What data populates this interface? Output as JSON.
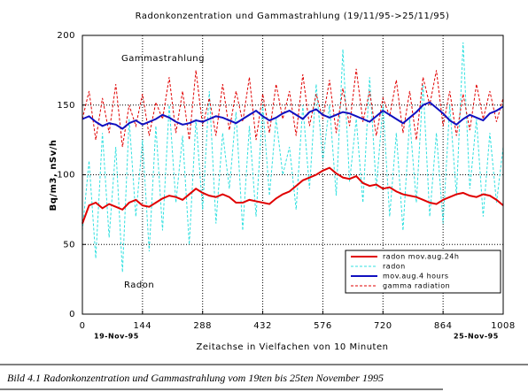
{
  "chart_data": {
    "type": "line",
    "title": "Radonkonzentration und Gammastrahlung (19/11/95->25/11/95)",
    "x_label": "Zeitachse in Vielfachen von 10 Minuten",
    "y_label": "Bq/m3, nSv/h",
    "annotations": [
      "Gammastrahlung",
      "Radon"
    ],
    "date_start": "19-Nov-95",
    "date_end": "25-Nov-95",
    "caption": "Bild 4.1 Radonkonzentration und Gammastrahlung vom 19ten bis 25ten November 1995",
    "xlim": [
      0,
      1008
    ],
    "ylim": [
      0,
      200
    ],
    "xticks": [
      0,
      144,
      288,
      432,
      576,
      720,
      864,
      1008
    ],
    "yticks": [
      0,
      50,
      100,
      150,
      200
    ],
    "grid": true,
    "legend": "lower-right",
    "x": [
      0,
      16,
      32,
      48,
      64,
      80,
      96,
      112,
      128,
      144,
      160,
      176,
      192,
      208,
      224,
      240,
      256,
      272,
      288,
      304,
      320,
      336,
      352,
      368,
      384,
      400,
      416,
      432,
      448,
      464,
      480,
      496,
      512,
      528,
      544,
      560,
      576,
      592,
      608,
      624,
      640,
      656,
      672,
      688,
      704,
      720,
      736,
      752,
      768,
      784,
      800,
      816,
      832,
      848,
      864,
      880,
      896,
      912,
      928,
      944,
      960,
      976,
      992,
      1008
    ],
    "series": [
      {
        "name": "radon mov.aug.24h",
        "color": "#e00000",
        "dashed": false,
        "values": [
          65,
          78,
          80,
          76,
          79,
          77,
          75,
          80,
          82,
          78,
          77,
          80,
          83,
          85,
          84,
          82,
          86,
          90,
          87,
          85,
          84,
          86,
          84,
          80,
          80,
          82,
          81,
          80,
          79,
          83,
          86,
          88,
          92,
          96,
          98,
          100,
          103,
          105,
          101,
          98,
          97,
          99,
          94,
          92,
          93,
          90,
          91,
          88,
          86,
          85,
          84,
          82,
          80,
          79,
          82,
          84,
          86,
          87,
          85,
          84,
          86,
          85,
          82,
          78
        ]
      },
      {
        "name": "radon",
        "color": "#30e0e0",
        "dashed": true,
        "values": [
          60,
          110,
          40,
          130,
          55,
          120,
          30,
          140,
          70,
          125,
          45,
          135,
          60,
          150,
          80,
          128,
          50,
          140,
          75,
          160,
          65,
          130,
          90,
          145,
          60,
          135,
          70,
          150,
          85,
          140,
          100,
          120,
          75,
          150,
          90,
          165,
          110,
          150,
          85,
          190,
          95,
          140,
          80,
          170,
          90,
          150,
          70,
          130,
          60,
          140,
          80,
          165,
          70,
          130,
          65,
          150,
          85,
          195,
          90,
          140,
          70,
          130,
          80,
          120
        ]
      },
      {
        "name": "mov.aug.4 hours",
        "color": "#1010c0",
        "dashed": false,
        "values": [
          140,
          142,
          138,
          135,
          137,
          136,
          133,
          137,
          139,
          136,
          138,
          140,
          143,
          141,
          138,
          136,
          137,
          139,
          138,
          140,
          142,
          141,
          139,
          137,
          140,
          143,
          146,
          142,
          139,
          141,
          144,
          146,
          143,
          140,
          145,
          147,
          143,
          141,
          143,
          145,
          144,
          142,
          140,
          138,
          142,
          146,
          143,
          140,
          137,
          141,
          145,
          150,
          152,
          148,
          144,
          139,
          136,
          140,
          143,
          141,
          139,
          144,
          146,
          149
        ]
      },
      {
        "name": "gamma radiation",
        "color": "#e00000",
        "dashed": true,
        "values": [
          140,
          160,
          125,
          155,
          130,
          165,
          120,
          150,
          135,
          158,
          128,
          152,
          140,
          170,
          130,
          160,
          125,
          175,
          135,
          155,
          128,
          165,
          132,
          160,
          138,
          170,
          125,
          158,
          130,
          165,
          140,
          160,
          128,
          172,
          135,
          158,
          140,
          168,
          130,
          162,
          135,
          176,
          138,
          160,
          128,
          155,
          142,
          168,
          130,
          160,
          125,
          170,
          150,
          175,
          135,
          160,
          128,
          158,
          132,
          165,
          140,
          160,
          138,
          155
        ]
      }
    ]
  }
}
